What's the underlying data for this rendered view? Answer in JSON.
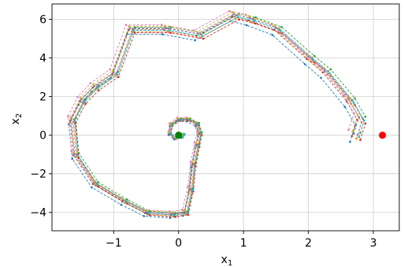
{
  "chart_data": {
    "type": "line",
    "xlabel": "x",
    "xlabel_sub": "1",
    "ylabel": "x",
    "ylabel_sub": "2",
    "xlim": [
      -1.95,
      3.4
    ],
    "ylim": [
      -4.95,
      6.8
    ],
    "grid": true,
    "xticks": [
      -1,
      0,
      1,
      2,
      3
    ],
    "yticks": [
      -4,
      -2,
      0,
      2,
      4,
      6
    ],
    "xtick_labels": [
      "−1",
      "0",
      "1",
      "2",
      "3"
    ],
    "ytick_labels": [
      "−4",
      "−2",
      "0",
      "2",
      "4",
      "6"
    ],
    "base_trajectory": [
      [
        2.7,
        0.0
      ],
      [
        2.78,
        0.85
      ],
      [
        2.62,
        1.8
      ],
      [
        2.25,
        3.3
      ],
      [
        2.0,
        4.0
      ],
      [
        1.5,
        5.5
      ],
      [
        1.1,
        6.0
      ],
      [
        0.85,
        6.2
      ],
      [
        0.3,
        5.2
      ],
      [
        -0.2,
        5.5
      ],
      [
        -0.75,
        5.5
      ],
      [
        -1.0,
        3.2
      ],
      [
        -1.3,
        2.5
      ],
      [
        -1.5,
        1.8
      ],
      [
        -1.65,
        0.8
      ],
      [
        -1.6,
        -1.0
      ],
      [
        -1.3,
        -2.5
      ],
      [
        -0.85,
        -3.4
      ],
      [
        -0.5,
        -4.0
      ],
      [
        -0.1,
        -4.1
      ],
      [
        0.1,
        -4.0
      ],
      [
        0.18,
        -2.8
      ],
      [
        0.22,
        -1.5
      ],
      [
        0.28,
        -0.5
      ],
      [
        0.32,
        0.1
      ],
      [
        0.28,
        0.6
      ],
      [
        0.15,
        0.82
      ],
      [
        0.0,
        0.82
      ],
      [
        -0.12,
        0.55
      ],
      [
        -0.14,
        0.1
      ],
      [
        -0.06,
        -0.15
      ],
      [
        0.05,
        -0.08
      ],
      [
        0.08,
        0.05
      ],
      [
        0.02,
        0.1
      ],
      [
        0.0,
        0.0
      ]
    ],
    "series": [
      {
        "color": "#1f77b4",
        "offset": [
          -0.06,
          -0.35
        ]
      },
      {
        "color": "#ff7f0e",
        "offset": [
          0.04,
          -0.18
        ]
      },
      {
        "color": "#2ca02c",
        "offset": [
          0.1,
          0.12
        ]
      },
      {
        "color": "#d62728",
        "offset": [
          0.1,
          -0.25
        ]
      },
      {
        "color": "#9467bd",
        "offset": [
          0.0,
          0.08
        ]
      },
      {
        "color": "#8c564b",
        "offset": [
          -0.03,
          -0.05
        ]
      },
      {
        "color": "#e377c2",
        "offset": [
          -0.08,
          0.28
        ]
      },
      {
        "color": "#7f7f7f",
        "offset": [
          0.06,
          0.02
        ]
      },
      {
        "color": "#bcbd22",
        "offset": [
          -0.02,
          0.2
        ]
      },
      {
        "color": "#17becf",
        "offset": [
          0.08,
          -0.1
        ]
      }
    ],
    "start_point": {
      "x": 3.14,
      "y": 0.0,
      "color": "#ff0000"
    },
    "end_point": {
      "x": 0.0,
      "y": 0.0,
      "color": "#008000"
    }
  }
}
